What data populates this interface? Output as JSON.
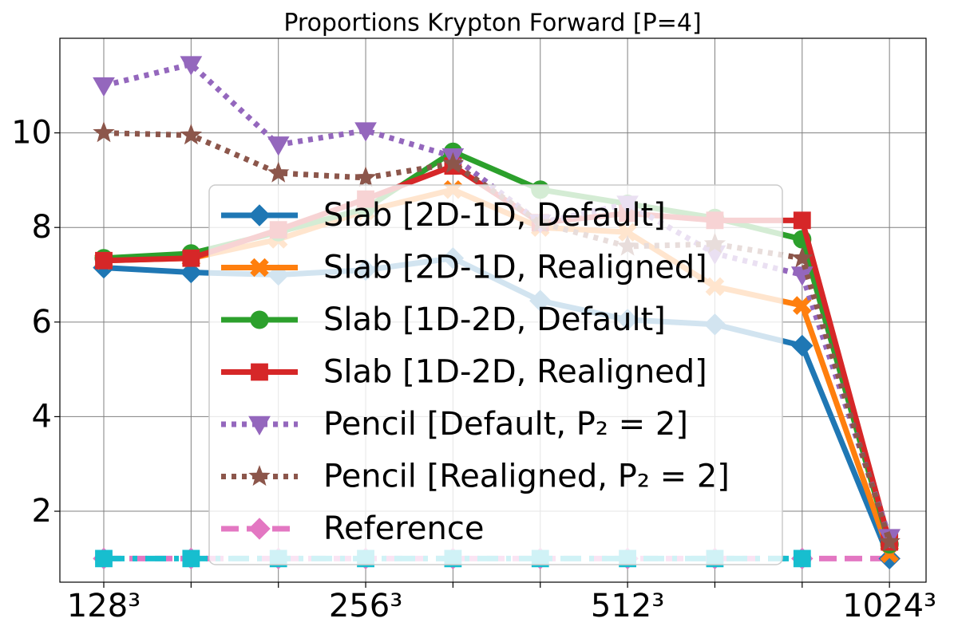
{
  "chart_data": {
    "type": "line",
    "title": "Proportions Krypton Forward [P=4]",
    "categories": [
      "128³",
      null,
      null,
      "256³",
      null,
      null,
      "512³",
      null,
      null,
      "1024³"
    ],
    "ylim": [
      0.5,
      12
    ],
    "yticks": [
      2,
      4,
      6,
      8,
      10
    ],
    "grid": true,
    "legend": "center",
    "series": [
      {
        "name": "Reference",
        "color": "#e377c2",
        "style": "dashed",
        "marker": "diamond",
        "values": [
          1,
          1,
          1,
          1,
          1,
          1,
          1,
          1,
          1,
          1
        ]
      },
      {
        "color": "#17becf",
        "style": "dashdot",
        "marker": "square",
        "values": [
          1,
          1,
          1,
          1,
          1,
          1,
          1,
          1,
          1,
          null
        ]
      },
      {
        "name": "Slab [2D-1D, Default]",
        "color": "#1f77b4",
        "style": "solid",
        "marker": "diamond",
        "values": [
          7.15,
          7.05,
          7.0,
          7.1,
          7.35,
          6.45,
          6.05,
          5.95,
          5.5,
          1.0
        ]
      },
      {
        "name": "Slab [2D-1D, Realigned]",
        "color": "#ff7f0e",
        "style": "solid",
        "marker": "x",
        "values": [
          7.3,
          7.35,
          7.75,
          8.35,
          8.8,
          8.0,
          7.9,
          6.75,
          6.35,
          1.1
        ]
      },
      {
        "name": "Slab [1D-2D, Default]",
        "color": "#2ca02c",
        "style": "solid",
        "marker": "circle",
        "values": [
          7.35,
          7.45,
          7.9,
          8.4,
          9.6,
          8.8,
          8.5,
          8.2,
          7.75,
          1.3
        ]
      },
      {
        "name": "Slab [1D-2D, Realigned]",
        "color": "#d62728",
        "style": "solid",
        "marker": "square",
        "values": [
          7.3,
          7.35,
          7.95,
          8.6,
          9.3,
          8.1,
          8.3,
          8.15,
          8.15,
          1.35
        ]
      },
      {
        "name": "Pencil [Default, P₂ = 2]",
        "color": "#9467bd",
        "style": "dotted",
        "marker": "tri",
        "values": [
          11.0,
          11.45,
          9.75,
          10.05,
          9.5,
          8.1,
          8.5,
          7.45,
          7.0,
          1.45
        ]
      },
      {
        "name": "Pencil [Realigned, P₂ = 2]",
        "color": "#8c564b",
        "style": "dotted",
        "marker": "star",
        "values": [
          10.0,
          9.95,
          9.15,
          9.05,
          9.35,
          8.1,
          7.6,
          7.65,
          7.35,
          1.35
        ]
      }
    ],
    "legend_order": [
      2,
      3,
      4,
      5,
      6,
      7,
      0
    ]
  }
}
